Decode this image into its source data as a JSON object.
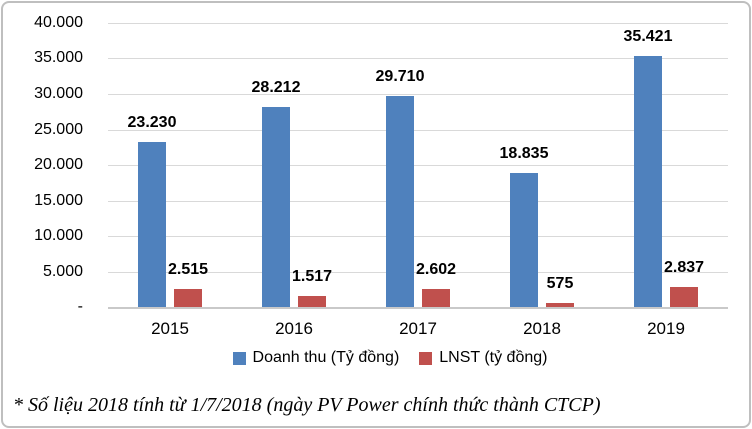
{
  "chart_data": {
    "type": "bar",
    "title": "",
    "xlabel": "",
    "ylabel": "",
    "categories": [
      "2015",
      "2016",
      "2017",
      "2018",
      "2019"
    ],
    "series": [
      {
        "key": "doanh-thu",
        "name": "Doanh thu (Tỷ đồng)",
        "color": "#4F81BD",
        "values": [
          23230,
          28212,
          29710,
          18835,
          35421
        ],
        "labels": [
          "23.230",
          "28.212",
          "29.710",
          "18.835",
          "35.421"
        ]
      },
      {
        "key": "lnst",
        "name": "LNST (tỷ đồng)",
        "color": "#C0504D",
        "values": [
          2515,
          1517,
          2602,
          575,
          2837
        ],
        "labels": [
          "2.515",
          "1.517",
          "2.602",
          "575",
          "2.837"
        ]
      }
    ],
    "y_axis": {
      "min": 0,
      "max": 40000,
      "step": 5000,
      "tick_labels": [
        "-",
        "5.000",
        "10.000",
        "15.000",
        "20.000",
        "25.000",
        "30.000",
        "35.000",
        "40.000"
      ]
    },
    "grid": true,
    "legend_position": "bottom"
  },
  "footnote": "* Số liệu 2018 tính từ 1/7/2018 (ngày PV Power chính thức thành CTCP)",
  "colors": {
    "grid": "#D9D9D9",
    "axis": "#C9C9C9",
    "text": "#000000",
    "border": "#BFBFBF",
    "background": "#FFFFFF"
  }
}
